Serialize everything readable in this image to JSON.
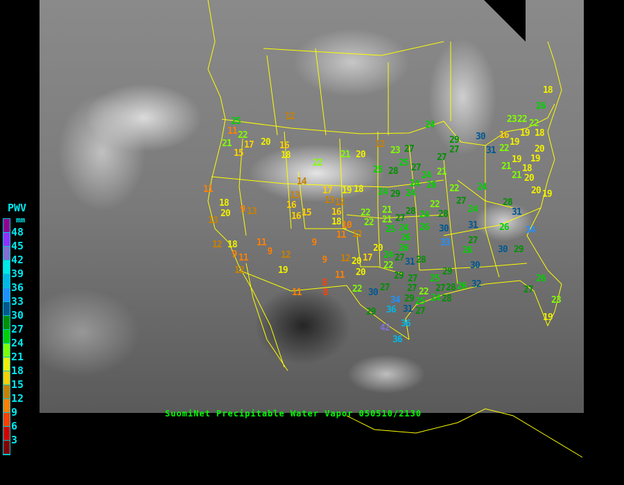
{
  "caption": "SuomiNet Precipitable Water Vapor 050510/2130",
  "legend": {
    "title": "PWV",
    "unit": "mm",
    "ticks": [
      "48",
      "45",
      "42",
      "39",
      "36",
      "33",
      "30",
      "27",
      "24",
      "21",
      "18",
      "15",
      "12",
      "9",
      "6",
      "3"
    ],
    "colors": [
      "#900090",
      "#9030ff",
      "#8070d0",
      "#00e8e8",
      "#00b8e8",
      "#2090ff",
      "#005890",
      "#009000",
      "#00d000",
      "#80ff00",
      "#f0f000",
      "#ffd000",
      "#c88000",
      "#ff8000",
      "#ff4000",
      "#d00000",
      "#800000"
    ]
  },
  "colors": {
    "borders": "#ffff00",
    "caption": "#00ff00",
    "legend_text": "#00e8f0"
  },
  "stations": [
    12,
    25,
    11,
    22,
    21,
    17,
    20,
    15,
    16,
    18,
    22,
    21,
    20,
    12,
    23,
    11,
    14,
    17,
    19,
    18,
    13,
    13,
    12,
    16,
    16,
    18,
    18,
    20,
    9,
    13,
    22,
    21,
    16,
    15,
    13,
    10,
    11,
    12,
    11,
    9,
    12,
    18,
    9,
    11,
    9,
    12,
    9,
    12,
    20,
    17,
    19,
    12,
    20,
    11,
    8,
    8,
    11,
    22,
    18,
    26,
    24,
    23,
    22,
    22,
    30,
    16,
    19,
    19,
    18,
    29,
    27,
    31,
    22,
    20,
    19,
    27,
    27,
    25,
    28,
    25,
    27,
    21,
    21,
    19,
    18,
    21,
    20,
    24,
    24,
    26,
    22,
    24,
    24,
    29,
    24,
    20,
    19,
    22,
    27,
    28,
    24,
    28,
    24,
    28,
    31,
    22,
    21,
    27,
    26,
    30,
    31,
    26,
    34,
    25,
    24,
    26,
    33,
    27,
    26,
    30,
    29,
    26,
    20,
    24,
    27,
    31,
    28,
    22,
    29,
    30,
    29,
    27,
    27,
    25,
    27,
    32,
    26,
    27,
    28,
    26,
    23,
    19,
    30,
    27,
    29,
    34,
    31,
    25,
    27,
    22,
    24,
    28,
    36,
    29,
    36,
    42,
    36
  ]
}
